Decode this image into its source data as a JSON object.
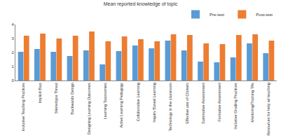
{
  "chart_data": {
    "type": "bar",
    "title": "Mean reported knowledge of topic",
    "categories": [
      "Inclusive Teaching Practices",
      "Implicit Bias",
      "Stereotype Threat",
      "Backwards Design",
      "Designing Learning Outcomes",
      "Learning Taxonomies",
      "Active Learning Pedagogy",
      "Collaborative Learning",
      "Inquiry Based Learning",
      "Technology in the classroom",
      "Effective use of Clickers",
      "Summative Assessment",
      "Formative Assessment",
      "Inclusive Grading Practices",
      "Mentoring/Training TAs",
      "Resources for help w/ teaching"
    ],
    "series": [
      {
        "name": "Pre-test",
        "color": "#5b9bd5",
        "values": [
          2.05,
          2.25,
          2.05,
          1.75,
          2.15,
          1.15,
          2.1,
          2.5,
          2.3,
          2.85,
          2.15,
          1.35,
          1.3,
          1.65,
          2.65,
          1.95
        ]
      },
      {
        "name": "Post-test",
        "color": "#ed7d31",
        "values": [
          3.2,
          3.35,
          3.0,
          3.2,
          3.5,
          2.8,
          3.15,
          2.95,
          2.8,
          3.3,
          3.25,
          2.65,
          2.6,
          3.25,
          3.3,
          2.85
        ]
      }
    ],
    "ylim": [
      0,
      4
    ],
    "yticks": [
      0,
      1,
      2,
      3,
      4
    ],
    "grid": false,
    "legend": "top right"
  }
}
